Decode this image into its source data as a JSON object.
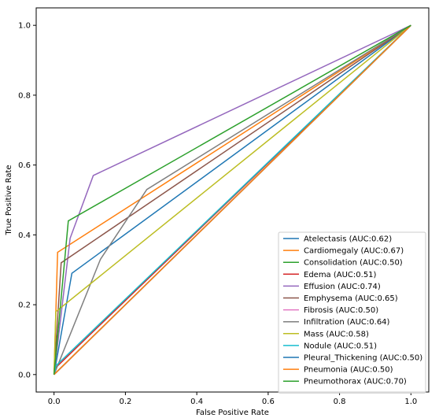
{
  "chart_data": {
    "type": "line",
    "xlabel": "False Positive Rate",
    "ylabel": "True Positive Rate",
    "xlim": [
      -0.05,
      1.05
    ],
    "ylim": [
      -0.05,
      1.05
    ],
    "xticks": [
      0.0,
      0.2,
      0.4,
      0.6,
      0.8,
      1.0
    ],
    "yticks": [
      0.0,
      0.2,
      0.4,
      0.6,
      0.8,
      1.0
    ],
    "xtick_labels": [
      "0.0",
      "0.2",
      "0.4",
      "0.6",
      "0.8",
      "1.0"
    ],
    "ytick_labels": [
      "0.0",
      "0.2",
      "0.4",
      "0.6",
      "0.8",
      "1.0"
    ],
    "grid": false,
    "legend_position": "lower-right",
    "series": [
      {
        "name": "Atelectasis (AUC:0.62)",
        "color": "#1f77b4",
        "x": [
          0,
          0.05,
          1
        ],
        "y": [
          0,
          0.29,
          1
        ]
      },
      {
        "name": "Cardiomegaly (AUC:0.67)",
        "color": "#ff7f0e",
        "x": [
          0,
          0.01,
          1
        ],
        "y": [
          0,
          0.35,
          1
        ]
      },
      {
        "name": "Consolidation (AUC:0.50)",
        "color": "#2ca02c",
        "x": [
          0,
          1
        ],
        "y": [
          0,
          1
        ]
      },
      {
        "name": "Edema (AUC:0.51)",
        "color": "#d62728",
        "x": [
          0,
          0.005,
          1
        ],
        "y": [
          0,
          0.02,
          1
        ]
      },
      {
        "name": "Effusion (AUC:0.74)",
        "color": "#9467bd",
        "x": [
          0,
          0.045,
          0.11,
          1
        ],
        "y": [
          0,
          0.39,
          0.57,
          1
        ]
      },
      {
        "name": "Emphysema (AUC:0.65)",
        "color": "#8c564b",
        "x": [
          0,
          0.02,
          1
        ],
        "y": [
          0,
          0.32,
          1
        ]
      },
      {
        "name": "Fibrosis (AUC:0.50)",
        "color": "#e377c2",
        "x": [
          0,
          1
        ],
        "y": [
          0,
          1
        ]
      },
      {
        "name": "Infiltration (AUC:0.64)",
        "color": "#7f7f7f",
        "x": [
          0,
          0.13,
          0.26,
          1
        ],
        "y": [
          0,
          0.33,
          0.53,
          1
        ]
      },
      {
        "name": "Mass (AUC:0.58)",
        "color": "#bcbd22",
        "x": [
          0,
          0.005,
          1
        ],
        "y": [
          0,
          0.18,
          1
        ]
      },
      {
        "name": "Nodule (AUC:0.51)",
        "color": "#17becf",
        "x": [
          0,
          0.005,
          1
        ],
        "y": [
          0,
          0.025,
          1
        ]
      },
      {
        "name": "Pleural_Thickening (AUC:0.50)",
        "color": "#1f77b4",
        "x": [
          0,
          1
        ],
        "y": [
          0,
          1
        ]
      },
      {
        "name": "Pneumonia (AUC:0.50)",
        "color": "#ff7f0e",
        "x": [
          0,
          1
        ],
        "y": [
          0,
          1
        ]
      },
      {
        "name": "Pneumothorax (AUC:0.70)",
        "color": "#2ca02c",
        "x": [
          0,
          0.04,
          1
        ],
        "y": [
          0,
          0.44,
          1
        ]
      }
    ]
  }
}
